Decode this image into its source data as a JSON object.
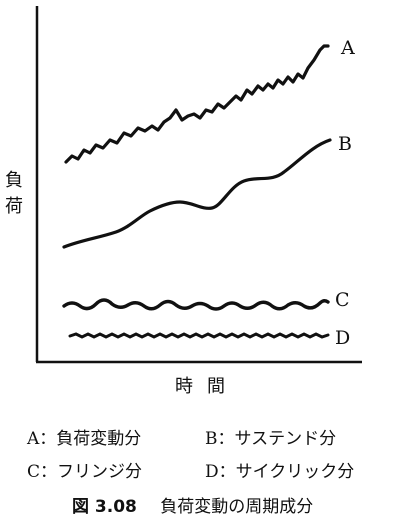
{
  "axes": {
    "y_label": [
      "負",
      "荷"
    ],
    "x_label": "時間"
  },
  "curves": [
    {
      "id": "A",
      "label": "A"
    },
    {
      "id": "B",
      "label": "B"
    },
    {
      "id": "C",
      "label": "C"
    },
    {
      "id": "D",
      "label": "D"
    }
  ],
  "legend": {
    "A": "A：負荷変動分",
    "B": "B：サステンド分",
    "C": "C：フリンジ分",
    "D": "D：サイクリック分"
  },
  "caption": {
    "number": "図 3.08",
    "title": "負荷変動の周期成分"
  },
  "colors": {
    "ink": "#111111",
    "background": "#ffffff"
  }
}
